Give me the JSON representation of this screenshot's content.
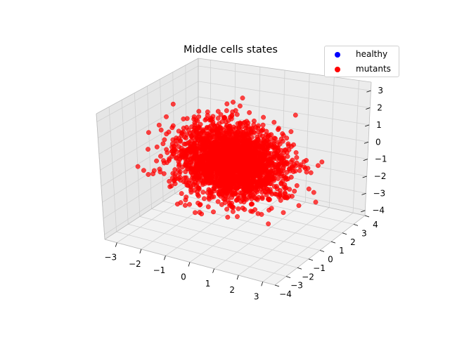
{
  "chart_data": {
    "type": "scatter",
    "title": "Middle cells states",
    "projection": "3d",
    "xlim": [
      -3.5,
      3.5
    ],
    "ylim": [
      -4,
      4
    ],
    "zlim": [
      -4.3,
      3.5
    ],
    "x_ticks": [
      "−3",
      "−2",
      "−1",
      "0",
      "1",
      "2",
      "3"
    ],
    "y_ticks": [
      "−4",
      "−3",
      "−2",
      "−1",
      "0",
      "1",
      "2",
      "3",
      "4"
    ],
    "z_ticks": [
      "−4",
      "−3",
      "−2",
      "−1",
      "0",
      "1",
      "2",
      "3"
    ],
    "grid": true,
    "legend_position": "top-right",
    "series": [
      {
        "name": "healthy",
        "color": "#0000ff",
        "count": 0
      },
      {
        "name": "mutants",
        "color": "#ff0000",
        "count": 2600,
        "distribution": "standard normal, 3D"
      }
    ]
  }
}
